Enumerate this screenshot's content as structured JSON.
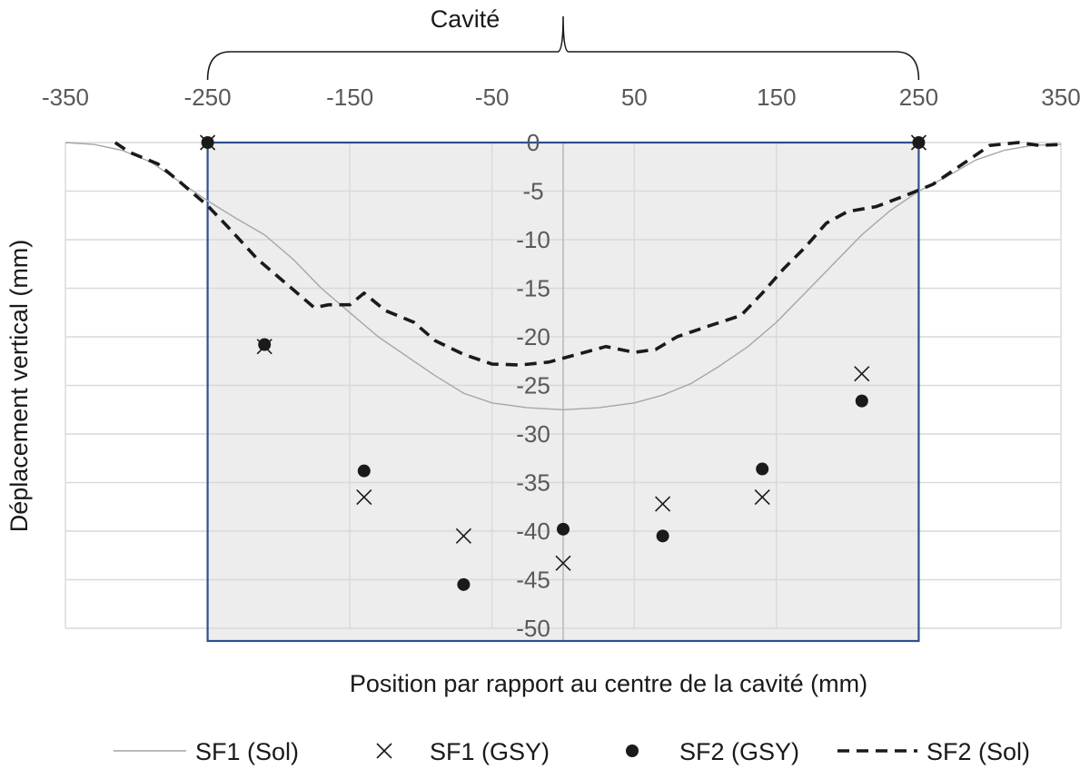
{
  "chart_data": {
    "type": "scatter",
    "title": "Cavité",
    "xlabel": "Position par rapport au centre de la cavité (mm)",
    "ylabel": "Déplacement vertical (mm)",
    "xlim": [
      -350,
      350
    ],
    "ylim": [
      -50,
      0
    ],
    "x_ticks": [
      -350,
      -250,
      -150,
      -50,
      50,
      150,
      250,
      350
    ],
    "x_tick_labels": [
      "-350",
      "-250",
      "-150",
      "-50",
      "50",
      "150",
      "250",
      "350"
    ],
    "y_ticks": [
      0,
      -5,
      -10,
      -15,
      -20,
      -25,
      -30,
      -35,
      -40,
      -45,
      -50
    ],
    "y_tick_labels": [
      "0",
      "-5",
      "-10",
      "-15",
      "-20",
      "-25",
      "-30",
      "-35",
      "-40",
      "-45",
      "-50"
    ],
    "x_axis_position": "top",
    "y_axis_position": "center",
    "grid": true,
    "legend_position": "bottom",
    "cavity_region": {
      "x_start": -250,
      "x_end": 250,
      "fill": "#ededed",
      "border": "#2f4f8f"
    },
    "colors": {
      "sol_sf1": "#a6a6a6",
      "series": "#1a1a1a",
      "grid": "#d9d9d9"
    },
    "series": [
      {
        "name": "SF1 (Sol)",
        "style": "thin-line",
        "color": "#a6a6a6",
        "points": [
          {
            "x": -350,
            "y": 0
          },
          {
            "x": -330,
            "y": -0.2
          },
          {
            "x": -310,
            "y": -0.8
          },
          {
            "x": -290,
            "y": -2
          },
          {
            "x": -270,
            "y": -4
          },
          {
            "x": -250,
            "y": -6
          },
          {
            "x": -230,
            "y": -7.8
          },
          {
            "x": -210,
            "y": -9.5
          },
          {
            "x": -190,
            "y": -12
          },
          {
            "x": -170,
            "y": -15
          },
          {
            "x": -150,
            "y": -17.5
          },
          {
            "x": -130,
            "y": -20
          },
          {
            "x": -110,
            "y": -22
          },
          {
            "x": -90,
            "y": -24
          },
          {
            "x": -70,
            "y": -25.8
          },
          {
            "x": -50,
            "y": -26.8
          },
          {
            "x": -25,
            "y": -27.3
          },
          {
            "x": 0,
            "y": -27.5
          },
          {
            "x": 25,
            "y": -27.3
          },
          {
            "x": 50,
            "y": -26.8
          },
          {
            "x": 70,
            "y": -26
          },
          {
            "x": 90,
            "y": -24.8
          },
          {
            "x": 110,
            "y": -23
          },
          {
            "x": 130,
            "y": -21
          },
          {
            "x": 150,
            "y": -18.5
          },
          {
            "x": 170,
            "y": -15.5
          },
          {
            "x": 190,
            "y": -12.5
          },
          {
            "x": 210,
            "y": -9.5
          },
          {
            "x": 230,
            "y": -7
          },
          {
            "x": 250,
            "y": -5
          },
          {
            "x": 270,
            "y": -3.5
          },
          {
            "x": 290,
            "y": -1.8
          },
          {
            "x": 310,
            "y": -0.8
          },
          {
            "x": 330,
            "y": -0.3
          },
          {
            "x": 350,
            "y": -0.2
          }
        ]
      },
      {
        "name": "SF1 (GSY)",
        "style": "x-marker",
        "color": "#1a1a1a",
        "points": [
          {
            "x": -250,
            "y": 0
          },
          {
            "x": -210,
            "y": -21
          },
          {
            "x": -140,
            "y": -36.5
          },
          {
            "x": -70,
            "y": -40.5
          },
          {
            "x": 0,
            "y": -43.3
          },
          {
            "x": 70,
            "y": -37.2
          },
          {
            "x": 140,
            "y": -36.5
          },
          {
            "x": 210,
            "y": -23.8
          },
          {
            "x": 250,
            "y": 0
          }
        ]
      },
      {
        "name": "SF2 (GSY)",
        "style": "dot-marker",
        "color": "#1a1a1a",
        "points": [
          {
            "x": -250,
            "y": 0
          },
          {
            "x": -210,
            "y": -20.8
          },
          {
            "x": -140,
            "y": -33.8
          },
          {
            "x": -70,
            "y": -45.5
          },
          {
            "x": 0,
            "y": -39.8
          },
          {
            "x": 70,
            "y": -40.5
          },
          {
            "x": 140,
            "y": -33.6
          },
          {
            "x": 210,
            "y": -26.6
          },
          {
            "x": 250,
            "y": 0
          }
        ]
      },
      {
        "name": "SF2 (Sol)",
        "style": "dashed-line",
        "color": "#1a1a1a",
        "points": [
          {
            "x": -315,
            "y": 0
          },
          {
            "x": -305,
            "y": -1
          },
          {
            "x": -285,
            "y": -2.2
          },
          {
            "x": -270,
            "y": -4
          },
          {
            "x": -250,
            "y": -6.5
          },
          {
            "x": -235,
            "y": -8.8
          },
          {
            "x": -215,
            "y": -12
          },
          {
            "x": -195,
            "y": -14.5
          },
          {
            "x": -175,
            "y": -17
          },
          {
            "x": -165,
            "y": -16.7
          },
          {
            "x": -150,
            "y": -16.7
          },
          {
            "x": -140,
            "y": -15.5
          },
          {
            "x": -125,
            "y": -17.3
          },
          {
            "x": -105,
            "y": -18.5
          },
          {
            "x": -90,
            "y": -20.4
          },
          {
            "x": -70,
            "y": -21.8
          },
          {
            "x": -50,
            "y": -22.8
          },
          {
            "x": -30,
            "y": -22.9
          },
          {
            "x": -10,
            "y": -22.6
          },
          {
            "x": 10,
            "y": -21.8
          },
          {
            "x": 30,
            "y": -21
          },
          {
            "x": 50,
            "y": -21.6
          },
          {
            "x": 65,
            "y": -21.3
          },
          {
            "x": 80,
            "y": -20
          },
          {
            "x": 100,
            "y": -19
          },
          {
            "x": 125,
            "y": -17.8
          },
          {
            "x": 140,
            "y": -15.5
          },
          {
            "x": 155,
            "y": -13
          },
          {
            "x": 170,
            "y": -10.8
          },
          {
            "x": 185,
            "y": -8.3
          },
          {
            "x": 200,
            "y": -7.1
          },
          {
            "x": 220,
            "y": -6.6
          },
          {
            "x": 240,
            "y": -5.5
          },
          {
            "x": 260,
            "y": -4.3
          },
          {
            "x": 275,
            "y": -2.8
          },
          {
            "x": 290,
            "y": -1.3
          },
          {
            "x": 300,
            "y": -0.3
          },
          {
            "x": 320,
            "y": 0
          },
          {
            "x": 335,
            "y": -0.3
          },
          {
            "x": 350,
            "y": -0.2
          }
        ]
      }
    ]
  }
}
